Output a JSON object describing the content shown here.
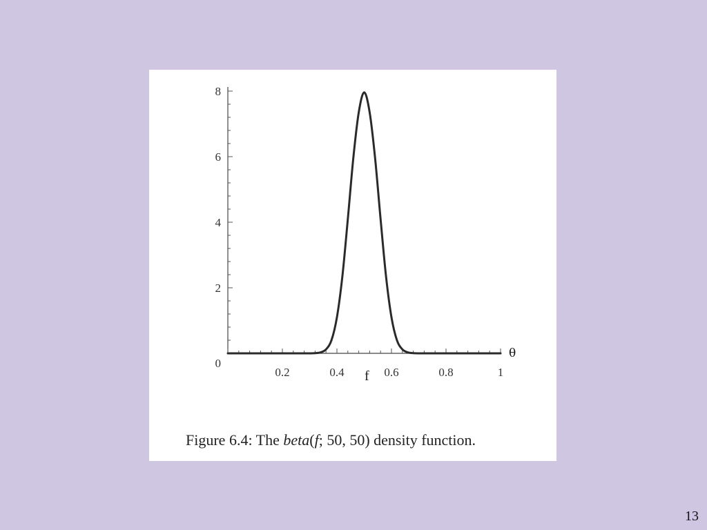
{
  "slide": {
    "page_number": "13"
  },
  "figure": {
    "caption_prefix": "Figure 6.4: The ",
    "caption_func": "beta",
    "caption_paren_open": "(",
    "caption_var": "f",
    "caption_args": "; 50, 50)",
    "caption_suffix": " density function."
  },
  "chart_data": {
    "type": "line",
    "xlabel": "f",
    "extra_axis_label": "θ",
    "xlim": [
      0,
      1
    ],
    "ylim": [
      0,
      8
    ],
    "x_ticks": [
      0.2,
      0.4,
      0.6,
      0.8,
      1
    ],
    "x_tick_labels": [
      "0.2",
      "0.4",
      "0.6",
      "0.8",
      "1"
    ],
    "y_ticks": [
      0,
      2,
      4,
      6,
      8
    ],
    "y_tick_labels": [
      "0",
      "2",
      "4",
      "6",
      "8"
    ],
    "series": [
      {
        "x": [
          0,
          0.05,
          0.1,
          0.15,
          0.2,
          0.25,
          0.3,
          0.32,
          0.34,
          0.36,
          0.38,
          0.4,
          0.42,
          0.44,
          0.46,
          0.48,
          0.5,
          0.52,
          0.54,
          0.56,
          0.58,
          0.6,
          0.62,
          0.64,
          0.66,
          0.68,
          0.7,
          0.75,
          0.8,
          0.85,
          0.9,
          0.95,
          1.0
        ],
        "y": [
          0,
          0,
          0,
          0,
          0,
          0,
          0,
          0.005,
          0.03,
          0.12,
          0.4,
          1.1,
          2.35,
          4.1,
          5.95,
          7.35,
          7.96,
          7.35,
          5.95,
          4.1,
          2.35,
          1.1,
          0.4,
          0.12,
          0.03,
          0.005,
          0,
          0,
          0,
          0,
          0,
          0,
          0
        ]
      }
    ],
    "grid": false,
    "line_color": "#2a2a2a"
  }
}
